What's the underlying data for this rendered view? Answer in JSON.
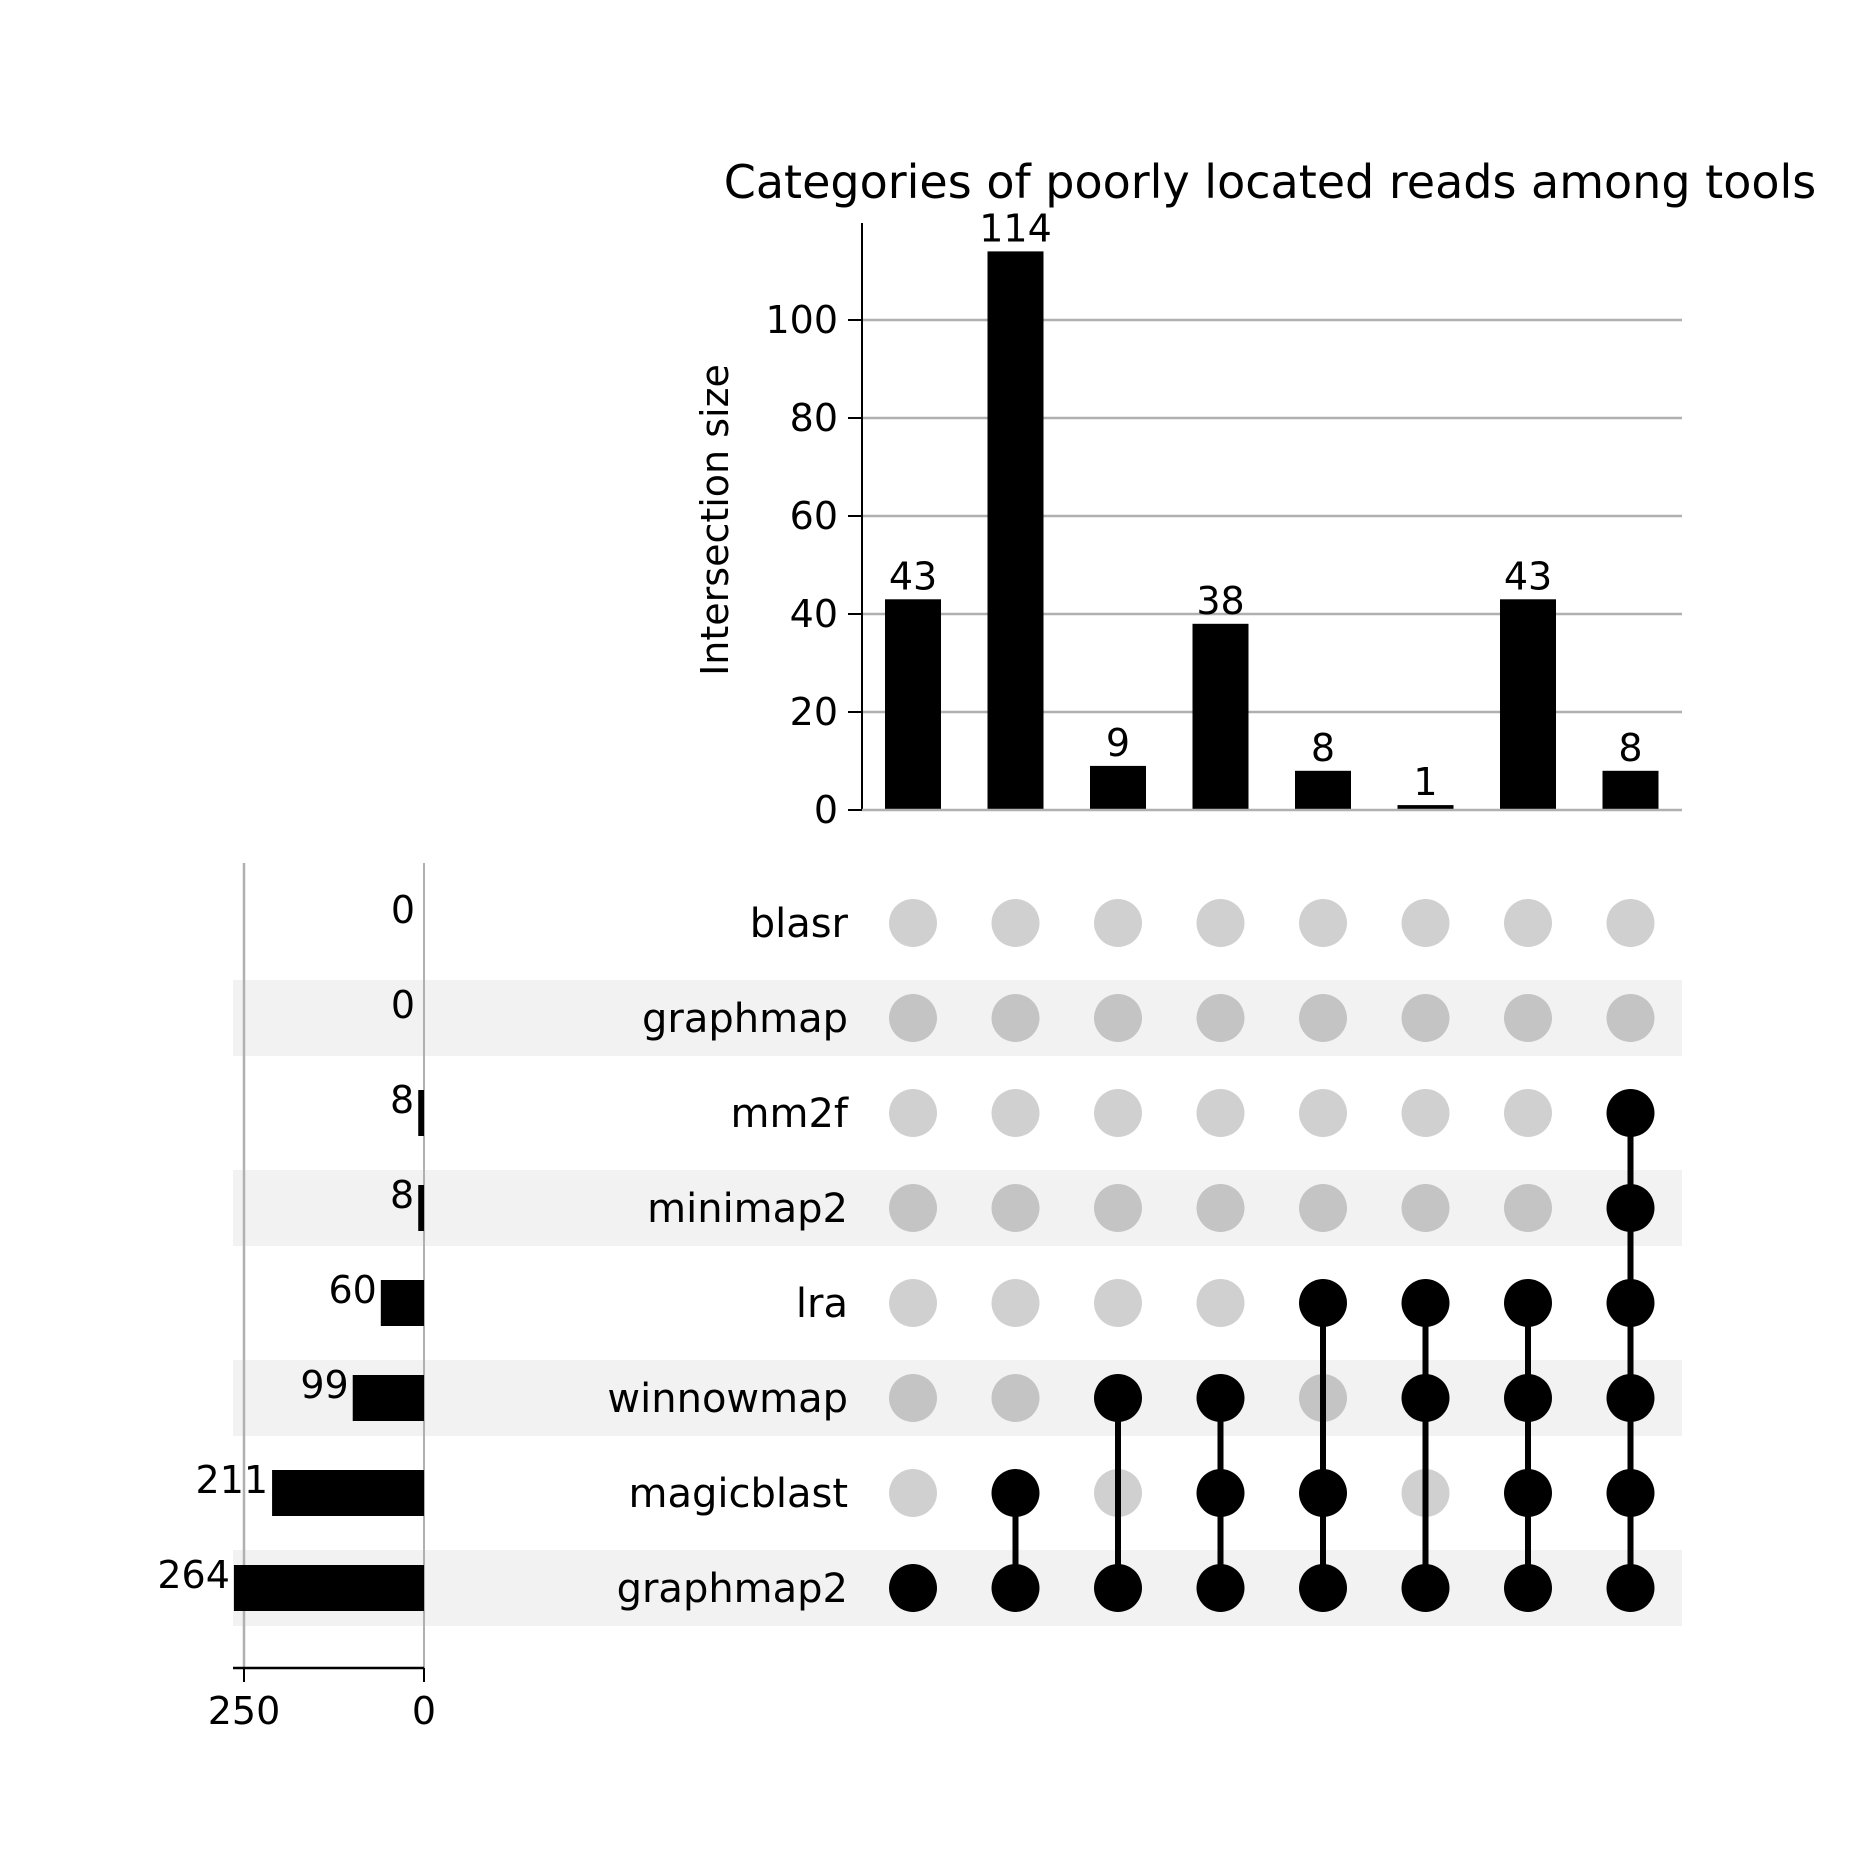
{
  "chart_data": {
    "type": "upset",
    "title": "Categories of poorly located reads among tools",
    "ylabel": "Intersection size",
    "ylim": [
      0,
      120
    ],
    "yticks": [
      0,
      20,
      40,
      60,
      80,
      100
    ],
    "grid": true,
    "sets": [
      {
        "name": "blasr",
        "size": 0
      },
      {
        "name": "graphmap",
        "size": 0
      },
      {
        "name": "mm2f",
        "size": 8
      },
      {
        "name": "minimap2",
        "size": 8
      },
      {
        "name": "lra",
        "size": 60
      },
      {
        "name": "winnowmap",
        "size": 99
      },
      {
        "name": "magicblast",
        "size": 211
      },
      {
        "name": "graphmap2",
        "size": 264
      }
    ],
    "set_size_ticks": [
      250,
      0
    ],
    "set_size_max": 264,
    "intersections": [
      {
        "value": 43,
        "members": [
          "graphmap2"
        ]
      },
      {
        "value": 114,
        "members": [
          "magicblast",
          "graphmap2"
        ]
      },
      {
        "value": 9,
        "members": [
          "winnowmap",
          "graphmap2"
        ]
      },
      {
        "value": 38,
        "members": [
          "winnowmap",
          "magicblast",
          "graphmap2"
        ]
      },
      {
        "value": 8,
        "members": [
          "lra",
          "magicblast",
          "graphmap2"
        ]
      },
      {
        "value": 1,
        "members": [
          "lra",
          "winnowmap",
          "graphmap2"
        ]
      },
      {
        "value": 43,
        "members": [
          "lra",
          "winnowmap",
          "magicblast",
          "graphmap2"
        ]
      },
      {
        "value": 8,
        "members": [
          "mm2f",
          "minimap2",
          "lra",
          "winnowmap",
          "magicblast",
          "graphmap2"
        ]
      }
    ],
    "colors": {
      "bar": "#000000",
      "dot_active": "#000000",
      "dot_inactive_light": "#d0d0d0",
      "dot_inactive_dark": "#c4c4c4",
      "stripe": "#f2f2f2",
      "grid": "#b0b0b0"
    }
  }
}
